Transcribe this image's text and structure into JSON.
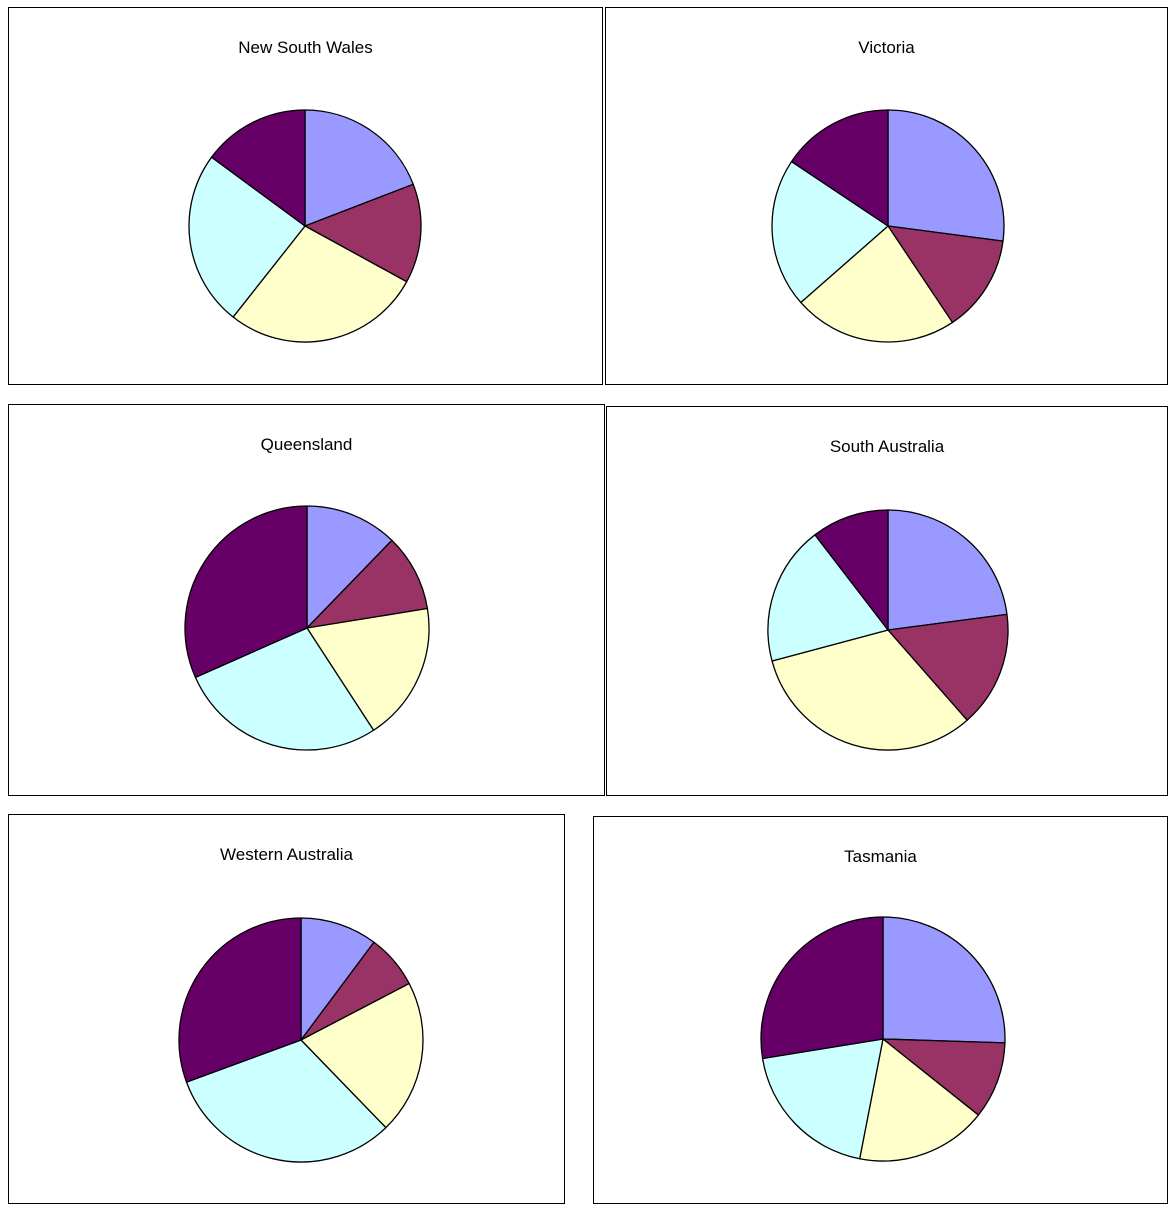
{
  "colors": {
    "slices": [
      "#9999ff",
      "#993366",
      "#ffffcc",
      "#ccffff",
      "#660066"
    ],
    "stroke": "#000000"
  },
  "chart_data": [
    {
      "type": "pie",
      "title": "New South Wales",
      "values": [
        18,
        13,
        26,
        23,
        14
      ]
    },
    {
      "type": "pie",
      "title": "Victoria",
      "values": [
        26,
        13,
        22,
        20,
        15
      ]
    },
    {
      "type": "pie",
      "title": "Queensland",
      "values": [
        12,
        10,
        18,
        27,
        31
      ]
    },
    {
      "type": "pie",
      "title": "South Australia",
      "values": [
        22,
        15,
        31,
        18,
        10
      ]
    },
    {
      "type": "pie",
      "title": "Western Australia",
      "values": [
        10,
        7,
        20,
        31,
        30
      ]
    },
    {
      "type": "pie",
      "title": "Tasmania",
      "values": [
        25,
        10,
        17,
        19,
        27
      ]
    }
  ]
}
